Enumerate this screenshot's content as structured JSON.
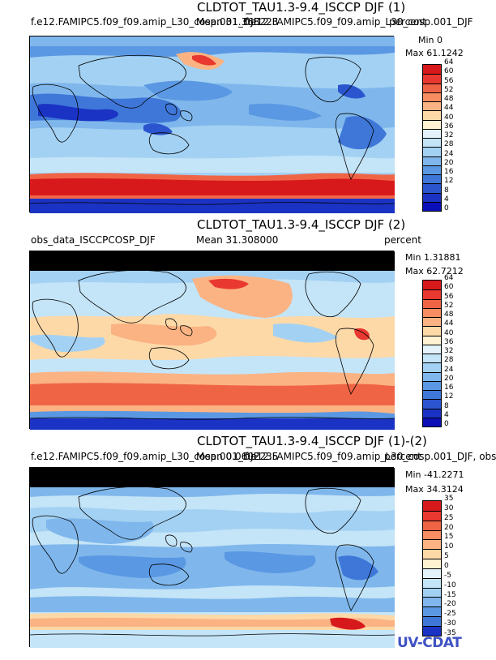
{
  "panels": [
    {
      "title": "CLDTOT_TAU1.3-9.4_ISCCP DJF (1)",
      "subtitle_left": "f.e12.FAMIPC5.f09_f09.amip_L30_cosp.001_DJF",
      "mean": "Mean 31.368223",
      "subtitle_right": "f.e12.FAMIPC5.f09_f09.amip_L30_cosp.001_DJF",
      "units": "percent",
      "min": "Min 0",
      "max": "Max 61.1242",
      "cbar_ticks": [
        "64",
        "60",
        "56",
        "52",
        "48",
        "44",
        "40",
        "36",
        "32",
        "28",
        "24",
        "20",
        "16",
        "12",
        "8",
        "4",
        "0"
      ],
      "cbar_colors": [
        "#d7191c",
        "#e8382f",
        "#f06446",
        "#f88c62",
        "#fbb383",
        "#fdd9a8",
        "#fff3d2",
        "#e4f3fb",
        "#c4e4f7",
        "#a3d1f3",
        "#7fb7ec",
        "#5b98e3",
        "#3f77d9",
        "#2b55ce",
        "#1a33c4",
        "#0a0fb8"
      ]
    },
    {
      "title": "CLDTOT_TAU1.3-9.4_ISCCP DJF (2)",
      "subtitle_left": "obs_data_ISCCPCOSP_DJF",
      "mean": "Mean 31.308000",
      "subtitle_right": "",
      "units": "percent",
      "min": "Min 1.31881",
      "max": "Max 62.7212",
      "cbar_ticks": [
        "64",
        "60",
        "56",
        "52",
        "48",
        "44",
        "40",
        "36",
        "32",
        "28",
        "24",
        "20",
        "16",
        "12",
        "8",
        "4",
        "0"
      ],
      "cbar_colors": [
        "#d7191c",
        "#e8382f",
        "#f06446",
        "#f88c62",
        "#fbb383",
        "#fdd9a8",
        "#fff3d2",
        "#e4f3fb",
        "#c4e4f7",
        "#a3d1f3",
        "#7fb7ec",
        "#5b98e3",
        "#3f77d9",
        "#2b55ce",
        "#1a33c4",
        "#0a0fb8"
      ]
    },
    {
      "title": "CLDTOT_TAU1.3-9.4_ISCCP DJF (1)-(2)",
      "subtitle_left": "f.e12.FAMIPC5.f09_f09.amip_L30_cosp.001_DJF",
      "mean": "Mean 0.0602235",
      "subtitle_right": "f.e12.FAMIPC5.f09_f09.amip_L30_cosp.001_DJF, obs",
      "units": "percent",
      "min": "Min -41.2271",
      "max": "Max 34.3124",
      "cbar_ticks": [
        "35",
        "30",
        "25",
        "20",
        "15",
        "10",
        "5",
        "0",
        "-5",
        "-10",
        "-15",
        "-20",
        "-25",
        "-30",
        "-35"
      ],
      "cbar_colors": [
        "#d7191c",
        "#e8382f",
        "#f06446",
        "#f88c62",
        "#fbb383",
        "#fdd9a8",
        "#fff3d2",
        "#e4f3fb",
        "#c4e4f7",
        "#a3d1f3",
        "#7fb7ec",
        "#5b98e3",
        "#3f77d9",
        "#1a33c4"
      ]
    }
  ],
  "logo": "UV-CDAT",
  "chart_data": [
    {
      "type": "heatmap",
      "title": "CLDTOT_TAU1.3-9.4_ISCCP DJF (1)",
      "units": "percent",
      "min": 0,
      "max": 61.1242,
      "mean": 31.368223,
      "colorbar_levels": [
        0,
        4,
        8,
        12,
        16,
        20,
        24,
        28,
        32,
        36,
        40,
        44,
        48,
        52,
        56,
        60,
        64
      ]
    },
    {
      "type": "heatmap",
      "title": "CLDTOT_TAU1.3-9.4_ISCCP DJF (2)",
      "units": "percent",
      "min": 1.31881,
      "max": 62.7212,
      "mean": 31.308,
      "colorbar_levels": [
        0,
        4,
        8,
        12,
        16,
        20,
        24,
        28,
        32,
        36,
        40,
        44,
        48,
        52,
        56,
        60,
        64
      ]
    },
    {
      "type": "heatmap",
      "title": "CLDTOT_TAU1.3-9.4_ISCCP DJF (1)-(2)",
      "units": "percent",
      "min": -41.2271,
      "max": 34.3124,
      "mean": 0.0602235,
      "colorbar_levels": [
        -35,
        -30,
        -25,
        -20,
        -15,
        -10,
        -5,
        0,
        5,
        10,
        15,
        20,
        25,
        30,
        35
      ]
    }
  ]
}
